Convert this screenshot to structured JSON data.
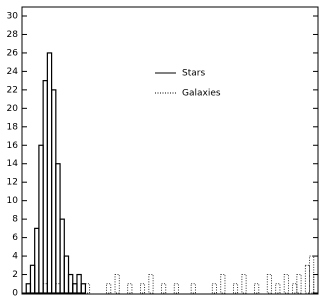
{
  "chart_data": {
    "type": "histogram",
    "categories": [
      null,
      null,
      null,
      null,
      null,
      null,
      null,
      null,
      null,
      null,
      null,
      null,
      null,
      null,
      null,
      null,
      null,
      null,
      null,
      null,
      null,
      null,
      null,
      null,
      null,
      null,
      null,
      null,
      null,
      null,
      null,
      null,
      null,
      null,
      null,
      null,
      null,
      null,
      null,
      null,
      null,
      null,
      null,
      null,
      null,
      null,
      null,
      null,
      null,
      null,
      null,
      null,
      null,
      null,
      null,
      null,
      null,
      null,
      null,
      null,
      null,
      null,
      null,
      null,
      null,
      null,
      null,
      null,
      null,
      null
    ],
    "series": [
      {
        "name": "Stars",
        "color": "#000000",
        "dash": "solid",
        "values": [
          0,
          1,
          3,
          7,
          16,
          23,
          26,
          22,
          14,
          8,
          4,
          2,
          1,
          2,
          1,
          0,
          0,
          0,
          0,
          0,
          0,
          0,
          0,
          0,
          0,
          0,
          0,
          0,
          0,
          0,
          0,
          0,
          0,
          0,
          0,
          0,
          0,
          0,
          0,
          0,
          0,
          0,
          0,
          0,
          0,
          0,
          0,
          0,
          0,
          0,
          0,
          0,
          0,
          0,
          0,
          0,
          0,
          0,
          0,
          0,
          0,
          0,
          0,
          0,
          0,
          0,
          0,
          0,
          0,
          0
        ]
      },
      {
        "name": "Galaxies",
        "color": "#000000",
        "dash": "dotted",
        "values": [
          0,
          0,
          0,
          0,
          0,
          1,
          0,
          0,
          1,
          0,
          0,
          0,
          1,
          0,
          0,
          1,
          0,
          0,
          0,
          0,
          1,
          0,
          2,
          0,
          0,
          1,
          0,
          0,
          1,
          0,
          2,
          0,
          0,
          1,
          0,
          0,
          1,
          0,
          0,
          0,
          1,
          0,
          0,
          0,
          0,
          1,
          0,
          2,
          0,
          0,
          1,
          0,
          2,
          0,
          0,
          1,
          0,
          0,
          2,
          0,
          1,
          0,
          2,
          0,
          1,
          2,
          0,
          3,
          4,
          2
        ]
      }
    ],
    "ylim": [
      0,
      30
    ],
    "yticks": [
      0,
      2,
      4,
      6,
      8,
      10,
      12,
      14,
      16,
      18,
      20,
      22,
      24,
      26,
      28,
      30
    ],
    "legend": "upper-center"
  }
}
